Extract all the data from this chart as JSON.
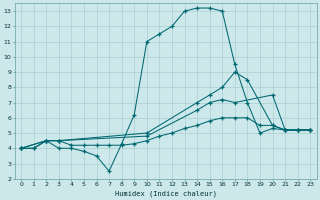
{
  "xlabel": "Humidex (Indice chaleur)",
  "bg_color": "#cce8ea",
  "grid_color": "#aacfd2",
  "line_color": "#006870",
  "xlim": [
    -0.5,
    23.5
  ],
  "ylim": [
    2,
    13.5
  ],
  "xticks": [
    0,
    1,
    2,
    3,
    4,
    5,
    6,
    7,
    8,
    9,
    10,
    11,
    12,
    13,
    14,
    15,
    16,
    17,
    18,
    19,
    20,
    21,
    22,
    23
  ],
  "yticks": [
    2,
    3,
    4,
    5,
    6,
    7,
    8,
    9,
    10,
    11,
    12,
    13
  ],
  "line_spiky_x": [
    0,
    1,
    2,
    3,
    4,
    5,
    6,
    7,
    8,
    9,
    10,
    11,
    12,
    13,
    14,
    15,
    16,
    17,
    18,
    19,
    20,
    21,
    22,
    23
  ],
  "line_spiky_y": [
    4,
    4,
    4.5,
    4,
    4,
    3.8,
    3.5,
    2.5,
    4.3,
    6.2,
    11,
    11.5,
    12,
    13,
    13.2,
    13.2,
    13,
    9.5,
    7,
    5,
    5.3,
    5.2,
    5.2,
    5.2
  ],
  "line_upper_x": [
    0,
    2,
    3,
    10,
    14,
    15,
    16,
    17,
    18,
    20,
    21,
    22,
    23
  ],
  "line_upper_y": [
    4,
    4.5,
    4.5,
    5,
    7,
    7.5,
    8,
    9,
    8.5,
    5.5,
    5.2,
    5.2,
    5.2
  ],
  "line_mid_x": [
    0,
    2,
    3,
    10,
    14,
    15,
    16,
    17,
    20,
    21,
    22,
    23
  ],
  "line_mid_y": [
    4,
    4.5,
    4.5,
    4.8,
    6.5,
    7,
    7.2,
    7,
    7.5,
    5.2,
    5.2,
    5.2
  ],
  "line_flat_x": [
    0,
    1,
    2,
    3,
    4,
    5,
    6,
    7,
    8,
    9,
    10,
    11,
    12,
    13,
    14,
    15,
    16,
    17,
    18,
    19,
    20,
    21,
    22,
    23
  ],
  "line_flat_y": [
    4,
    4,
    4.5,
    4.5,
    4.2,
    4.2,
    4.2,
    4.2,
    4.2,
    4.3,
    4.5,
    4.8,
    5,
    5.3,
    5.5,
    5.8,
    6,
    6,
    6,
    5.5,
    5.5,
    5.2,
    5.2,
    5.2
  ]
}
